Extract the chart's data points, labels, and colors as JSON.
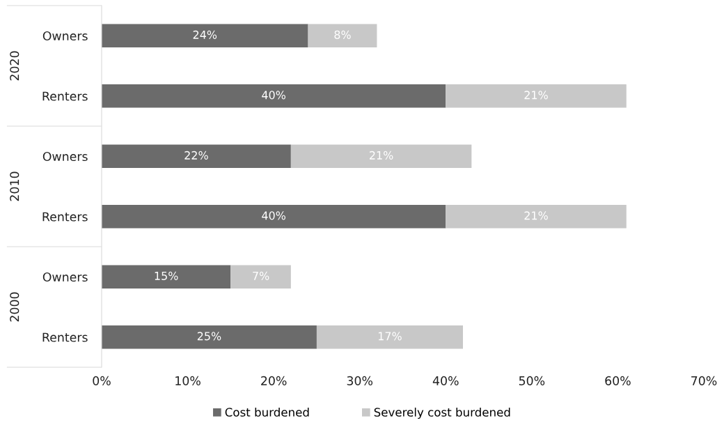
{
  "chart_data": {
    "type": "bar",
    "orientation": "horizontal",
    "stacked": true,
    "categories": [
      "Owners",
      "Renters",
      "Owners",
      "Renters",
      "Owners",
      "Renters"
    ],
    "series": [
      {
        "name": "Cost burdened",
        "color": "#6b6b6b",
        "values": [
          24,
          40,
          22,
          40,
          15,
          25
        ],
        "value_labels": [
          "24%",
          "40%",
          "22%",
          "40%",
          "15%",
          "25%"
        ]
      },
      {
        "name": "Severely cost burdened",
        "color": "#c8c8c8",
        "values": [
          8,
          21,
          21,
          21,
          7,
          17
        ],
        "value_labels": [
          "8%",
          "21%",
          "21%",
          "21%",
          "7%",
          "17%"
        ]
      }
    ],
    "xlim": [
      0,
      70
    ],
    "xticks": [
      {
        "value": 0,
        "label": "0%"
      },
      {
        "value": 10,
        "label": "10%"
      },
      {
        "value": 20,
        "label": "20%"
      },
      {
        "value": 30,
        "label": "30%"
      },
      {
        "value": 40,
        "label": "40%"
      },
      {
        "value": 50,
        "label": "50%"
      },
      {
        "value": 60,
        "label": "60%"
      },
      {
        "value": 70,
        "label": "70%"
      }
    ],
    "annotations": [
      "2020",
      "2010",
      "2000"
    ],
    "legend": "bottom",
    "grid": false
  }
}
